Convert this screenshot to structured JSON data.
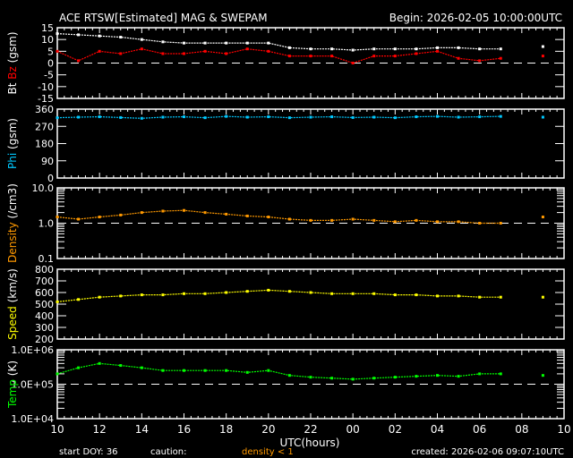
{
  "header": {
    "title": "ACE RTSW[Estimated] MAG & SWEPAM",
    "begin": "Begin: 2026-02-05 10:00:00UTC"
  },
  "footer": {
    "start_doy": "start DOY:  36",
    "caution": "caution:",
    "caution_note": "density < 1",
    "created": "created: 2026-02-06 09:07:10UTC"
  },
  "colors": {
    "background": "#000000",
    "bt": "#ffffff",
    "bz": "#ff0000",
    "phi": "#00c8ff",
    "density": "#ff9900",
    "speed": "#ffff00",
    "temp": "#00ff00",
    "caution": "#ff9900"
  },
  "chart_data": [
    {
      "type": "scatter",
      "ylabel_parts": [
        "Bt",
        "Bz",
        "(gsm)"
      ],
      "xlim": [
        10,
        34
      ],
      "ylim": [
        -15,
        15
      ],
      "scale": "linear",
      "yticks": [
        "15",
        "10",
        "5",
        "0",
        "-5",
        "-10",
        "-15"
      ],
      "reference_line": 0,
      "x": [
        10,
        11,
        12,
        13,
        14,
        15,
        16,
        17,
        18,
        19,
        20,
        21,
        22,
        23,
        24,
        25,
        26,
        27,
        28,
        29,
        30,
        31,
        32,
        33
      ],
      "series": [
        {
          "name": "Bt",
          "color": "#ffffff",
          "values": [
            12.5,
            12,
            11.5,
            11,
            10,
            9,
            8.5,
            8.5,
            8.5,
            8.5,
            8.5,
            6.5,
            6,
            6,
            5.5,
            6,
            6,
            6,
            6.5,
            6.5,
            6,
            6,
            null,
            7
          ]
        },
        {
          "name": "Bz",
          "color": "#ff0000",
          "values": [
            5,
            1,
            5,
            4,
            6,
            4,
            4,
            5,
            4,
            6,
            5,
            3,
            3,
            3,
            0,
            3,
            3,
            4,
            5,
            2,
            1,
            2,
            null,
            3
          ]
        }
      ]
    },
    {
      "type": "scatter",
      "ylabel_parts": [
        "Phi",
        "(gsm)"
      ],
      "xlim": [
        10,
        34
      ],
      "ylim": [
        0,
        360
      ],
      "scale": "linear",
      "yticks": [
        "360",
        "270",
        "180",
        "90",
        "0"
      ],
      "x": [
        10,
        11,
        12,
        13,
        14,
        15,
        16,
        17,
        18,
        19,
        20,
        21,
        22,
        23,
        24,
        25,
        26,
        27,
        28,
        29,
        30,
        31,
        32,
        33
      ],
      "series": [
        {
          "name": "Phi",
          "color": "#00c8ff",
          "values": [
            315,
            318,
            320,
            316,
            312,
            318,
            320,
            315,
            322,
            318,
            320,
            315,
            318,
            320,
            316,
            318,
            315,
            320,
            322,
            318,
            320,
            322,
            null,
            318
          ]
        }
      ]
    },
    {
      "type": "scatter",
      "ylabel_parts": [
        "Density",
        "(/cm3)"
      ],
      "xlim": [
        10,
        34
      ],
      "ylim": [
        0.1,
        10
      ],
      "scale": "log",
      "yticks": [
        "10.0",
        "1.0",
        "0.1"
      ],
      "reference_line": 1,
      "x": [
        10,
        11,
        12,
        13,
        14,
        15,
        16,
        17,
        18,
        19,
        20,
        21,
        22,
        23,
        24,
        25,
        26,
        27,
        28,
        29,
        30,
        31,
        32,
        33
      ],
      "series": [
        {
          "name": "Density",
          "color": "#ff9900",
          "values": [
            1.5,
            1.3,
            1.5,
            1.7,
            2.0,
            2.2,
            2.3,
            2.0,
            1.8,
            1.6,
            1.5,
            1.3,
            1.2,
            1.2,
            1.3,
            1.2,
            1.1,
            1.2,
            1.1,
            1.1,
            1.0,
            1.0,
            null,
            1.5
          ]
        }
      ]
    },
    {
      "type": "scatter",
      "ylabel_parts": [
        "Speed",
        "(km/s)"
      ],
      "xlim": [
        10,
        34
      ],
      "ylim": [
        200,
        800
      ],
      "scale": "linear",
      "yticks": [
        "800",
        "700",
        "600",
        "500",
        "400",
        "300",
        "200"
      ],
      "x": [
        10,
        11,
        12,
        13,
        14,
        15,
        16,
        17,
        18,
        19,
        20,
        21,
        22,
        23,
        24,
        25,
        26,
        27,
        28,
        29,
        30,
        31,
        32,
        33
      ],
      "series": [
        {
          "name": "Speed",
          "color": "#ffff00",
          "values": [
            520,
            540,
            560,
            570,
            580,
            580,
            590,
            590,
            600,
            610,
            620,
            610,
            600,
            590,
            590,
            590,
            580,
            580,
            570,
            570,
            560,
            560,
            null,
            560
          ]
        }
      ]
    },
    {
      "type": "scatter",
      "ylabel_parts": [
        "Temp",
        "(K)"
      ],
      "xlim": [
        10,
        34
      ],
      "ylim": [
        10000,
        1000000
      ],
      "scale": "log",
      "yticks": [
        "1.0E+06",
        "1.0E+05",
        "1.0E+04"
      ],
      "reference_line": 100000,
      "x": [
        10,
        11,
        12,
        13,
        14,
        15,
        16,
        17,
        18,
        19,
        20,
        21,
        22,
        23,
        24,
        25,
        26,
        27,
        28,
        29,
        30,
        31,
        32,
        33
      ],
      "series": [
        {
          "name": "Temp",
          "color": "#00ff00",
          "values": [
            200000,
            300000,
            400000,
            350000,
            300000,
            250000,
            250000,
            250000,
            250000,
            220000,
            250000,
            180000,
            160000,
            150000,
            140000,
            150000,
            160000,
            170000,
            180000,
            170000,
            200000,
            200000,
            null,
            180000
          ]
        }
      ]
    }
  ],
  "xaxis": {
    "label": "UTC(hours)",
    "ticks": [
      "10",
      "12",
      "14",
      "16",
      "18",
      "20",
      "22",
      "00",
      "02",
      "04",
      "06",
      "08",
      "10"
    ]
  }
}
